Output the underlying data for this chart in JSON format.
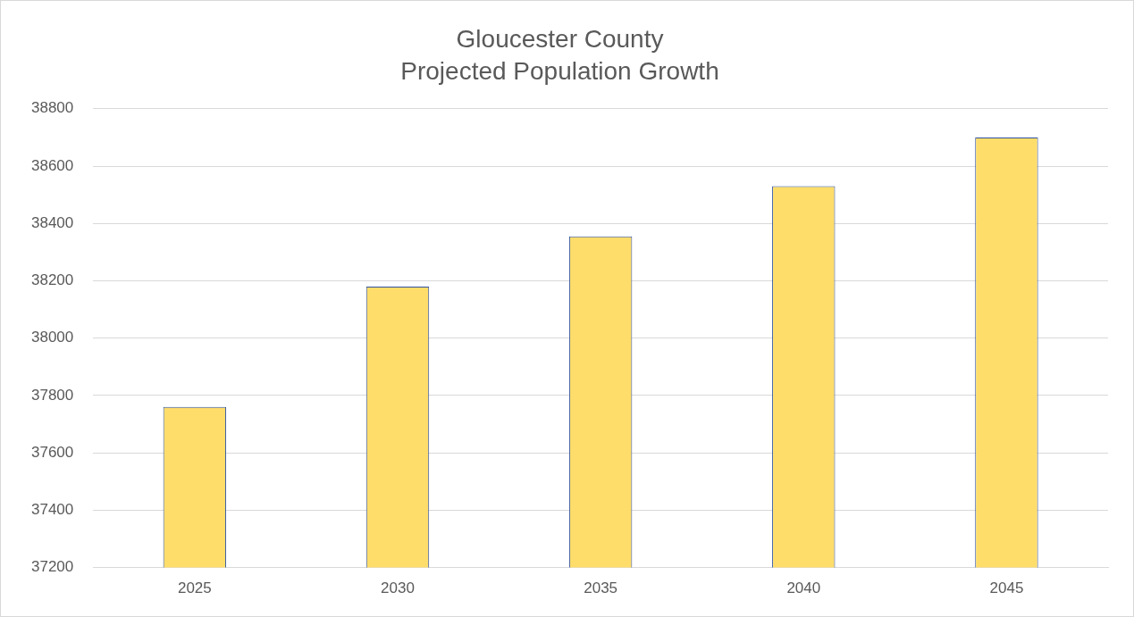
{
  "chart_data": {
    "type": "bar",
    "title": "Gloucester County\nProjected Population Growth",
    "categories": [
      "2025",
      "2030",
      "2035",
      "2040",
      "2045"
    ],
    "series": [
      {
        "color": "#ffdd6b",
        "values": [
          37760,
          38180,
          38355,
          38530,
          38700
        ]
      }
    ],
    "ylim": [
      37200,
      38800
    ],
    "yticks": [
      37200,
      37400,
      37600,
      37800,
      38000,
      38200,
      38400,
      38600,
      38800
    ],
    "grid": "y",
    "legend": false
  }
}
